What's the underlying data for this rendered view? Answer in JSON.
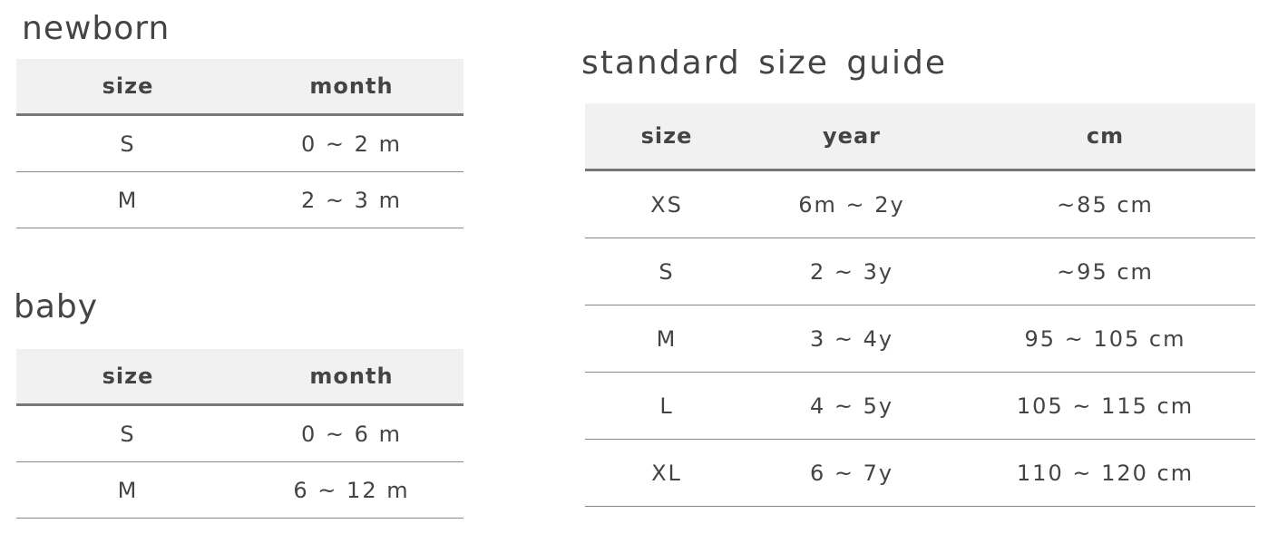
{
  "newborn": {
    "title": "newborn",
    "headers": [
      "size",
      "month"
    ],
    "rows": [
      [
        "S",
        "0 ~ 2 m"
      ],
      [
        "M",
        "2 ~ 3 m"
      ]
    ]
  },
  "baby": {
    "title": "baby",
    "headers": [
      "size",
      "month"
    ],
    "rows": [
      [
        "S",
        "0 ~ 6 m"
      ],
      [
        "M",
        "6 ~ 12 m"
      ]
    ]
  },
  "standard": {
    "title": "standard size guide",
    "headers": [
      "size",
      "year",
      "cm"
    ],
    "rows": [
      [
        "XS",
        "6m ~ 2y",
        "~85 cm"
      ],
      [
        "S",
        "2 ~ 3y",
        "~95 cm"
      ],
      [
        "M",
        "3 ~ 4y",
        "95 ~ 105 cm"
      ],
      [
        "L",
        "4 ~ 5y",
        "105 ~ 115 cm"
      ],
      [
        "XL",
        "6 ~ 7y",
        "110 ~ 120 cm"
      ]
    ]
  }
}
